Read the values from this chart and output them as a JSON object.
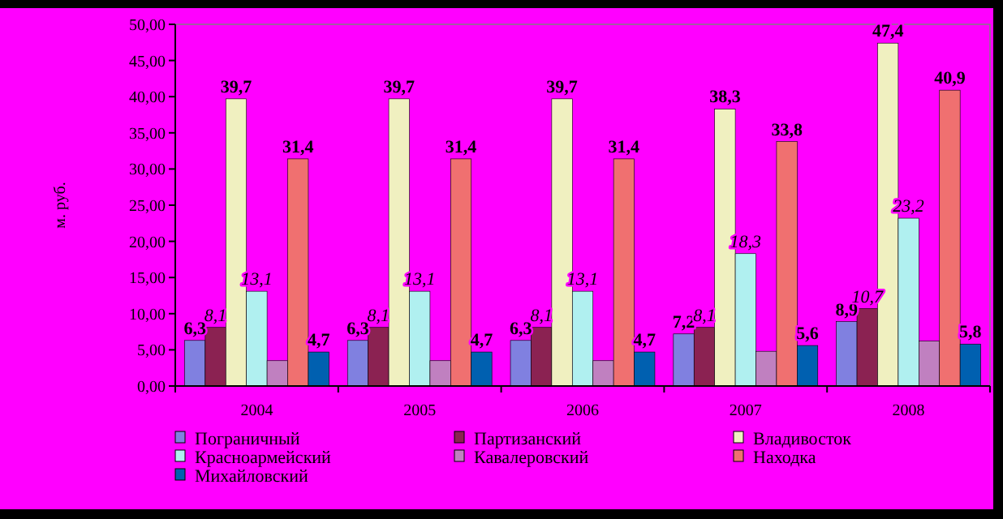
{
  "chart_data": {
    "type": "bar",
    "ylabel": "м. руб.",
    "categories": [
      "2004",
      "2005",
      "2006",
      "2007",
      "2008"
    ],
    "ylim": [
      0,
      50
    ],
    "yticks": [
      {
        "value": 0,
        "label": "0,00"
      },
      {
        "value": 5,
        "label": "5,00"
      },
      {
        "value": 10,
        "label": "10,00"
      },
      {
        "value": 15,
        "label": "15,00"
      },
      {
        "value": 20,
        "label": "20,00"
      },
      {
        "value": 25,
        "label": "25,00"
      },
      {
        "value": 30,
        "label": "30,00"
      },
      {
        "value": 35,
        "label": "35,00"
      },
      {
        "value": 40,
        "label": "40,00"
      },
      {
        "value": 45,
        "label": "45,00"
      },
      {
        "value": 50,
        "label": "50,00"
      }
    ],
    "legend": "bottom",
    "series": [
      {
        "name": "Пограничный",
        "color": "#8080e0",
        "values": [
          6.3,
          6.3,
          6.3,
          7.2,
          8.9
        ],
        "value_labels": [
          "6,3",
          "6,3",
          "6,3",
          "7,2",
          "8,9"
        ]
      },
      {
        "name": "Партизанский",
        "color": "#8b2252",
        "values": [
          8.1,
          8.1,
          8.1,
          8.1,
          10.7
        ],
        "value_labels": [
          "8,1",
          "8,1",
          "8,1",
          "8,1",
          "10,7"
        ]
      },
      {
        "name": "Владивосток",
        "color": "#f0f0c0",
        "values": [
          39.7,
          39.7,
          39.7,
          38.3,
          47.4
        ],
        "value_labels": [
          "39,7",
          "39,7",
          "39,7",
          "38,3",
          "47,4"
        ]
      },
      {
        "name": "Красноармейский",
        "color": "#b0f0f0",
        "values": [
          13.1,
          13.1,
          13.1,
          18.3,
          23.2
        ],
        "value_labels": [
          "13,1",
          "13,1",
          "13,1",
          "18,3",
          "23,2"
        ]
      },
      {
        "name": "Кавалеровский",
        "color": "#c080c0",
        "values": [
          3.5,
          3.5,
          3.5,
          4.8,
          6.2
        ]
      },
      {
        "name": "Находка",
        "color": "#f07070",
        "values": [
          31.4,
          31.4,
          31.4,
          33.8,
          40.9
        ],
        "value_labels": [
          "31,4",
          "31,4",
          "31,4",
          "33,8",
          "40,9"
        ]
      },
      {
        "name": "Михайловский",
        "color": "#0060b0",
        "values": [
          4.7,
          4.7,
          4.7,
          5.6,
          5.8
        ],
        "value_labels": [
          "4,7",
          "4,7",
          "4,7",
          "5,6",
          "5,8"
        ]
      }
    ]
  }
}
